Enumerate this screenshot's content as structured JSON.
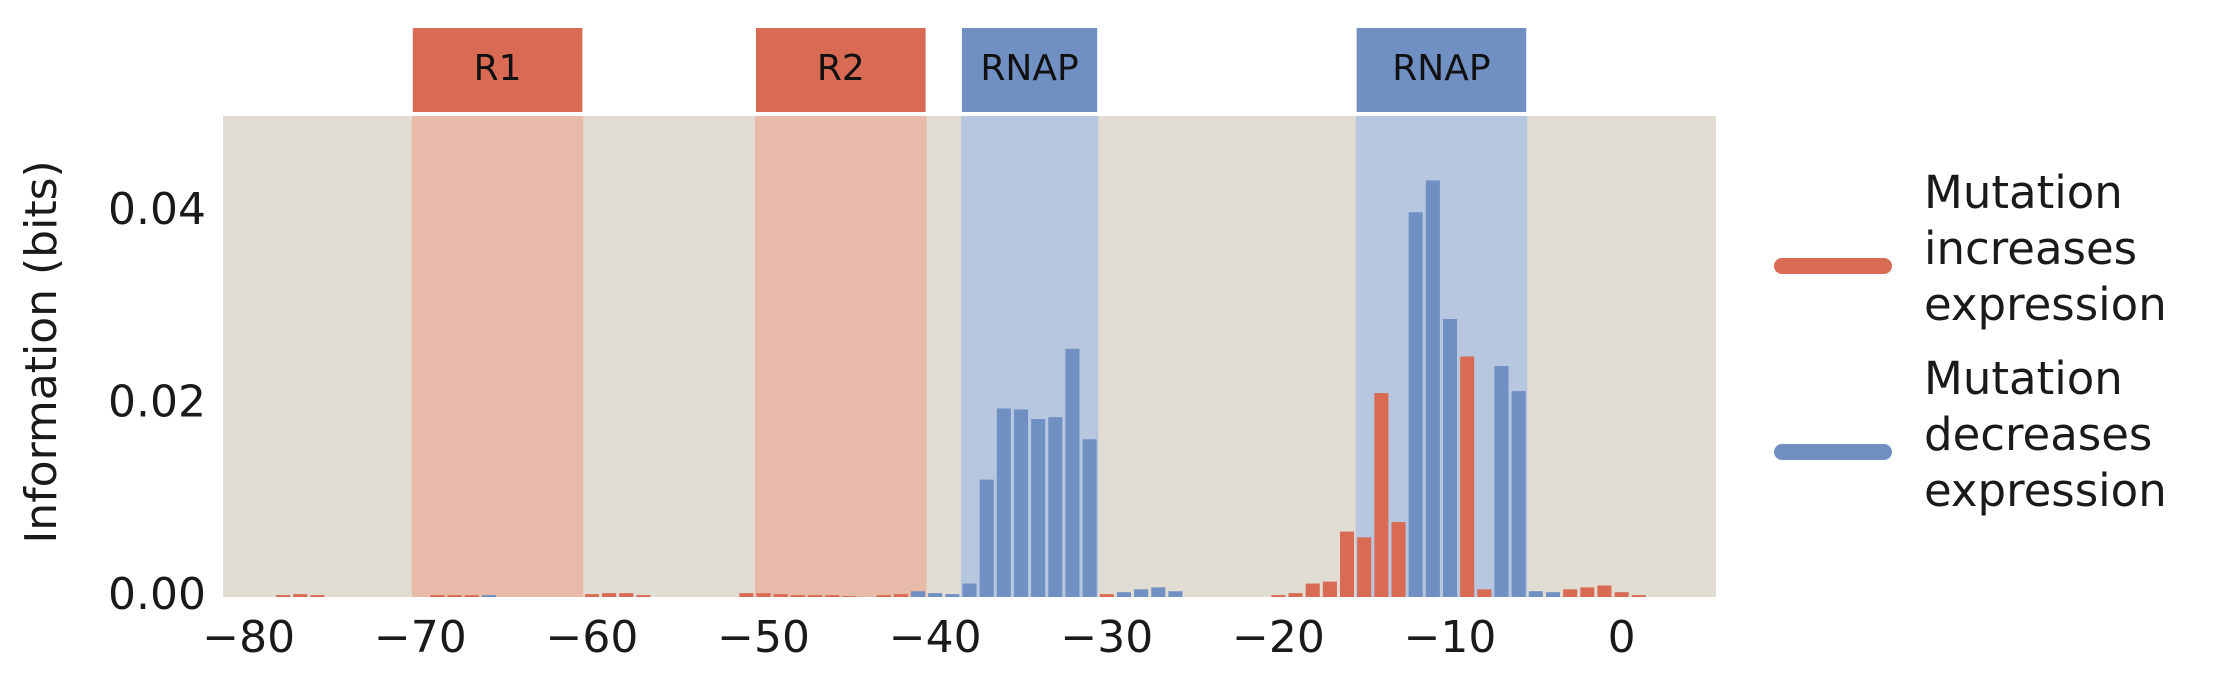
{
  "chart_data": {
    "type": "bar",
    "title": "",
    "xlabel": "",
    "ylabel": "Information (bits)",
    "xlim": [
      -81.5,
      5.5
    ],
    "ylim": [
      0,
      0.05
    ],
    "xticks": [
      -80,
      -70,
      -60,
      -50,
      -40,
      -30,
      -20,
      -10,
      0
    ],
    "xtick_labels": [
      "−80",
      "−70",
      "−60",
      "−50",
      "−40",
      "−30",
      "−20",
      "−10",
      "0"
    ],
    "yticks": [
      0.0,
      0.02,
      0.04
    ],
    "ytick_labels": [
      "0.00",
      "0.02",
      "0.04"
    ],
    "grid": false,
    "legend_position": "right",
    "colors": {
      "background": "#e2ddd2",
      "increase": "#d96b55",
      "decrease": "#7090c4",
      "repressor_region": "#e8baa9",
      "rnap_region": "#b8c7e0",
      "repressor_box": "#d96b55",
      "rnap_box": "#7090c4"
    },
    "regions": [
      {
        "label": "R1",
        "start": -70.5,
        "end": -60.5,
        "kind": "repressor"
      },
      {
        "label": "R2",
        "start": -50.5,
        "end": -40.5,
        "kind": "repressor"
      },
      {
        "label": "RNAP",
        "start": -38.5,
        "end": -30.5,
        "kind": "rnap"
      },
      {
        "label": "RNAP",
        "start": -15.5,
        "end": -5.5,
        "kind": "rnap"
      }
    ],
    "series": [
      {
        "name": "Mutation\nincreases\nexpression",
        "key": "increase",
        "x": [
          -78,
          -77,
          -76,
          -69,
          -68,
          -67,
          -60,
          -59,
          -58,
          -57,
          -51,
          -50,
          -49,
          -48,
          -47,
          -46,
          -45,
          -43,
          -42,
          -41,
          -30,
          -20,
          -19,
          -18,
          -17,
          -16,
          -15,
          -14,
          -13,
          -9,
          -8,
          -3,
          -2,
          -1,
          0,
          1
        ],
        "values": [
          0.0002,
          0.0003,
          0.0002,
          0.0002,
          0.0002,
          0.0002,
          0.0003,
          0.0004,
          0.0004,
          0.0002,
          0.0004,
          0.0004,
          0.0003,
          0.0002,
          0.0002,
          0.0002,
          0.0001,
          0.0002,
          0.0003,
          0.0005,
          0.0003,
          0.0002,
          0.0004,
          0.0014,
          0.0016,
          0.0068,
          0.0062,
          0.0212,
          0.0078,
          0.025,
          0.0008,
          0.0008,
          0.001,
          0.0012,
          0.0005,
          0.0002
        ]
      },
      {
        "name": "Mutation\ndecreases\nexpression",
        "key": "decrease",
        "x": [
          -66,
          -41,
          -40,
          -39,
          -38,
          -37,
          -36,
          -35,
          -34,
          -33,
          -32,
          -31,
          -29,
          -28,
          -27,
          -26,
          -12,
          -11,
          -10,
          -7,
          -6,
          -5,
          -4
        ],
        "values": [
          0.0002,
          0.0006,
          0.0004,
          0.0003,
          0.0014,
          0.0122,
          0.0196,
          0.0195,
          0.0185,
          0.0187,
          0.0258,
          0.0164,
          0.0005,
          0.0008,
          0.001,
          0.0006,
          0.04,
          0.0433,
          0.0289,
          0.024,
          0.0214,
          0.0006,
          0.0005
        ]
      }
    ]
  }
}
